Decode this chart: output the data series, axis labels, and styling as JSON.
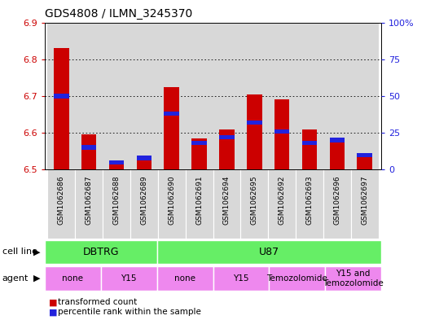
{
  "title": "GDS4808 / ILMN_3245370",
  "samples": [
    "GSM1062686",
    "GSM1062687",
    "GSM1062688",
    "GSM1062689",
    "GSM1062690",
    "GSM1062691",
    "GSM1062694",
    "GSM1062695",
    "GSM1062692",
    "GSM1062693",
    "GSM1062696",
    "GSM1062697"
  ],
  "transformed_count": [
    6.83,
    6.595,
    6.52,
    6.525,
    6.725,
    6.585,
    6.61,
    6.705,
    6.69,
    6.61,
    6.575,
    6.535
  ],
  "percentile_rank": [
    50,
    15,
    5,
    8,
    38,
    18,
    22,
    32,
    26,
    18,
    20,
    10
  ],
  "ylim_left": [
    6.5,
    6.9
  ],
  "ylim_right": [
    0,
    100
  ],
  "yticks_left": [
    6.5,
    6.6,
    6.7,
    6.8,
    6.9
  ],
  "yticks_right": [
    0,
    25,
    50,
    75,
    100
  ],
  "bar_color_red": "#cc0000",
  "bar_color_blue": "#2222dd",
  "bar_width": 0.55,
  "bg_color": "#d8d8d8",
  "cell_line_color": "#66ee66",
  "agent_color": "#ee88ee",
  "cell_lines": [
    {
      "label": "DBTRG",
      "span": [
        0,
        3
      ]
    },
    {
      "label": "U87",
      "span": [
        4,
        11
      ]
    }
  ],
  "agents": [
    {
      "label": "none",
      "span": [
        0,
        1
      ]
    },
    {
      "label": "Y15",
      "span": [
        2,
        3
      ]
    },
    {
      "label": "none",
      "span": [
        4,
        5
      ]
    },
    {
      "label": "Y15",
      "span": [
        6,
        7
      ]
    },
    {
      "label": "Temozolomide",
      "span": [
        8,
        9
      ]
    },
    {
      "label": "Y15 and\nTemozolomide",
      "span": [
        10,
        11
      ]
    }
  ],
  "grid_color": "#000000",
  "left_tick_color": "#cc0000",
  "right_tick_color": "#2222dd",
  "font_color": "#000000"
}
